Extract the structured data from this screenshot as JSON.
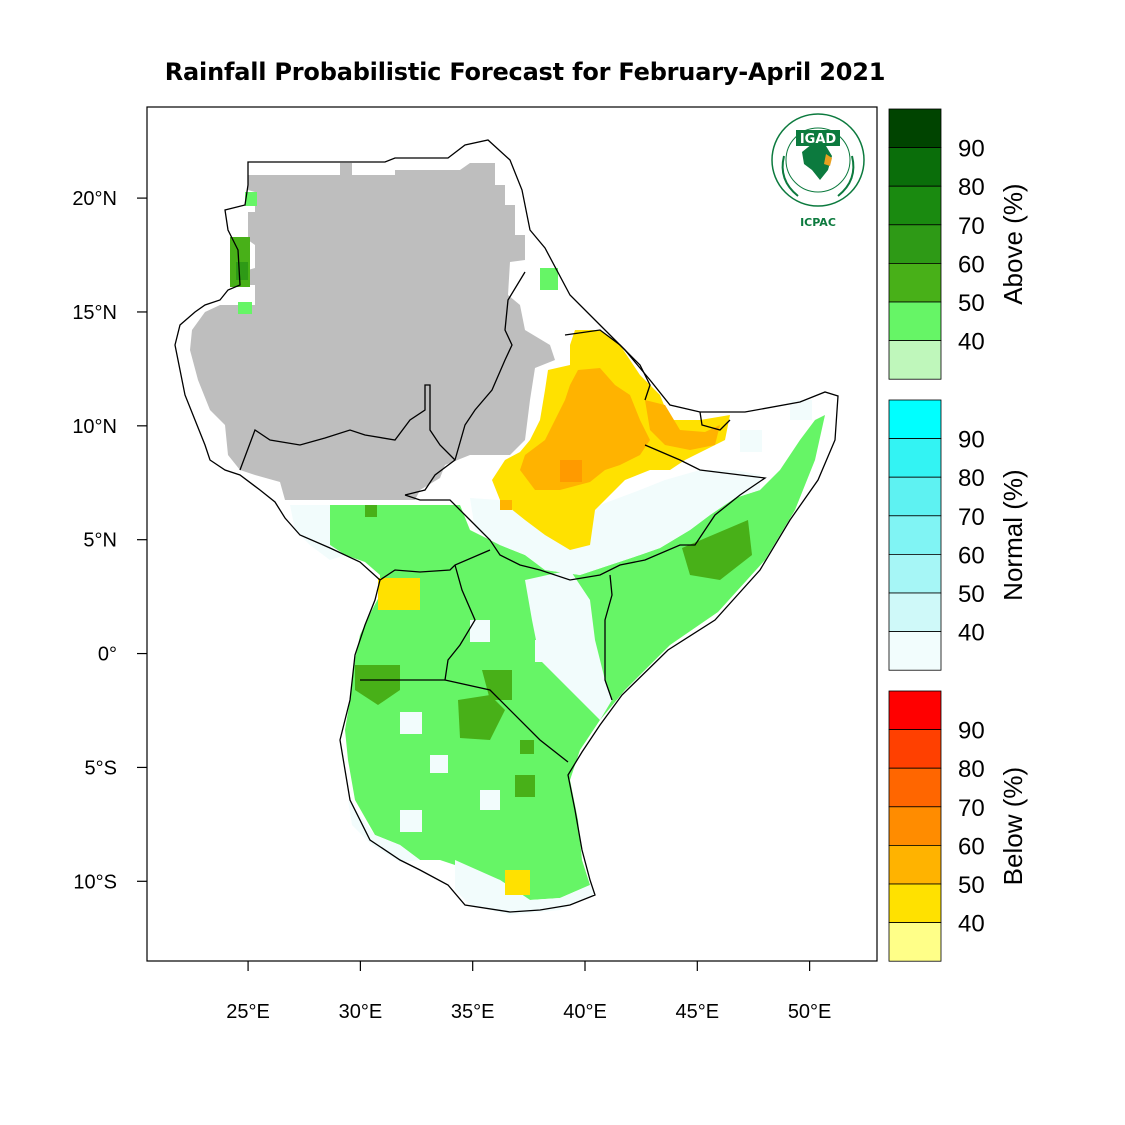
{
  "title": "Rainfall Probabilistic Forecast for February-April 2021",
  "map": {
    "lon_range": [
      20.5,
      53.0
    ],
    "lat_range": [
      -13.5,
      24.0
    ],
    "lon_ticks": [
      {
        "value": 25,
        "label": "25°E"
      },
      {
        "value": 30,
        "label": "30°E"
      },
      {
        "value": 35,
        "label": "35°E"
      },
      {
        "value": 40,
        "label": "40°E"
      },
      {
        "value": 45,
        "label": "45°E"
      },
      {
        "value": 50,
        "label": "50°E"
      }
    ],
    "lat_ticks": [
      {
        "value": 20,
        "label": "20°N"
      },
      {
        "value": 15,
        "label": "15°N"
      },
      {
        "value": 10,
        "label": "10°N"
      },
      {
        "value": 5,
        "label": "5°N"
      },
      {
        "value": 0,
        "label": "0°"
      },
      {
        "value": -5,
        "label": "5°S"
      },
      {
        "value": -10,
        "label": "10°S"
      }
    ],
    "colors": {
      "dry_season_mask": "#bebebe",
      "above_40": "#66f566",
      "above_50": "#4caf1c",
      "above_60": "#2e9a16",
      "normal_40": "#f2fcfc",
      "below_40": "#ffe100",
      "below_50": "#ffb300",
      "below_60": "#ff9a00",
      "coast": "#000000"
    }
  },
  "logo": {
    "name": "IGAD",
    "sub": "ICPAC",
    "ring_text": "INTERGOVERNMENTAL AUTHORITY ON DEVELOPMENT"
  },
  "legends": [
    {
      "title": "Above (%)",
      "labels": [
        "90",
        "80",
        "70",
        "60",
        "50",
        "40"
      ],
      "colors": [
        "#004400",
        "#0a6e0a",
        "#1a8a10",
        "#2e9a16",
        "#48b018",
        "#66f566",
        "#bff7bb"
      ]
    },
    {
      "title": "Normal (%)",
      "labels": [
        "90",
        "80",
        "70",
        "60",
        "50",
        "40"
      ],
      "colors": [
        "#00ffff",
        "#33f3f3",
        "#5ef2f2",
        "#80f4f4",
        "#a6f6f6",
        "#cff9f9",
        "#f2fdfd"
      ]
    },
    {
      "title": "Below (%)",
      "labels": [
        "90",
        "80",
        "70",
        "60",
        "50",
        "40"
      ],
      "colors": [
        "#ff0000",
        "#ff4000",
        "#ff6600",
        "#ff8c00",
        "#ffb300",
        "#ffe100",
        "#ffff88"
      ]
    }
  ]
}
